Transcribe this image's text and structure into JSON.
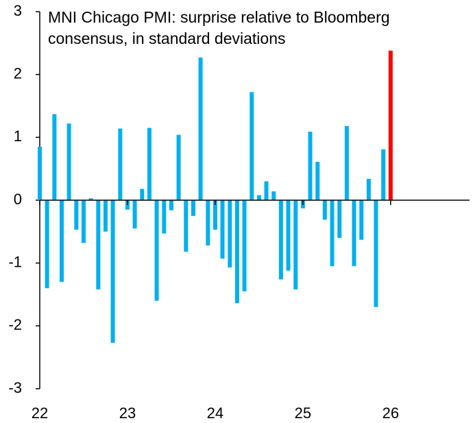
{
  "chart_data": {
    "type": "bar",
    "title": "MNI Chicago PMI: surprise relative to Bloomberg consensus, in standard deviations",
    "x": [
      22.0,
      22.083,
      22.167,
      22.25,
      22.333,
      22.417,
      22.5,
      22.583,
      22.667,
      22.75,
      22.833,
      22.917,
      23.0,
      23.083,
      23.167,
      23.25,
      23.333,
      23.417,
      23.5,
      23.583,
      23.667,
      23.75,
      23.833,
      23.917,
      24.0,
      24.083,
      24.167,
      24.25,
      24.333,
      24.417,
      24.5,
      24.583,
      24.667,
      24.75,
      24.833,
      24.917,
      25.0,
      25.083,
      25.167,
      25.25,
      25.333,
      25.417,
      25.5,
      25.583,
      25.667,
      25.75,
      25.833,
      25.917,
      26.0
    ],
    "values": [
      0.85,
      -1.4,
      1.37,
      -1.3,
      1.22,
      -0.47,
      -0.68,
      0.03,
      -1.42,
      -0.5,
      -2.27,
      1.14,
      -0.15,
      -0.45,
      0.18,
      1.15,
      -1.6,
      -0.53,
      -0.16,
      1.04,
      -0.82,
      -0.25,
      2.27,
      -0.72,
      -0.47,
      -0.93,
      -1.07,
      -1.64,
      -1.45,
      1.72,
      0.08,
      0.3,
      0.14,
      -1.26,
      -1.12,
      -1.42,
      -0.13,
      1.09,
      0.61,
      -0.31,
      -1.05,
      -0.6,
      1.18,
      -1.05,
      -0.63,
      0.34,
      -1.7,
      0.81,
      2.38
    ],
    "color": "#00b0f0",
    "highlight_color": "#ff0000",
    "highlight_last": true,
    "xlim": [
      22,
      26.9
    ],
    "xticks": [
      22,
      23,
      24,
      25,
      26
    ],
    "ylim": [
      -3,
      3
    ],
    "yticks": [
      -3,
      -2,
      -1,
      0,
      1,
      2,
      3
    ],
    "grid": false
  }
}
